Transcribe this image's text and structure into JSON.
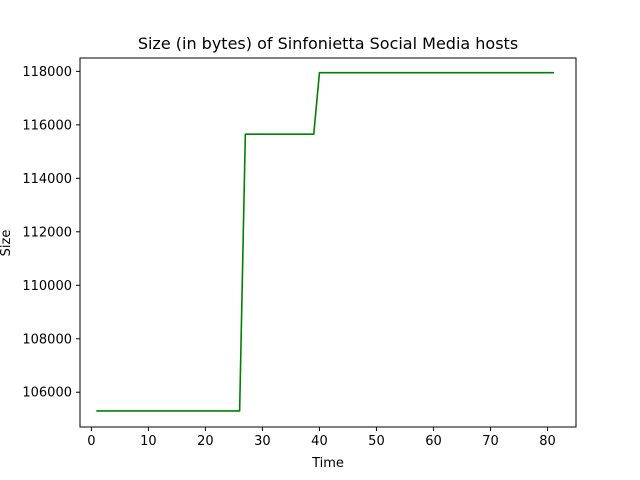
{
  "chart_data": {
    "type": "line",
    "title": "Size (in bytes) of Sinfonietta Social Media hosts",
    "xlabel": "Time",
    "ylabel": "Size",
    "xlim": [
      -2,
      85
    ],
    "ylim": [
      104700,
      118500
    ],
    "xticks": [
      0,
      10,
      20,
      30,
      40,
      50,
      60,
      70,
      80
    ],
    "yticks": [
      106000,
      108000,
      110000,
      112000,
      114000,
      116000,
      118000
    ],
    "grid": false,
    "series": [
      {
        "color": "#008000",
        "x": [
          1,
          26,
          27,
          39,
          40,
          81
        ],
        "y": [
          105300,
          105300,
          115650,
          115650,
          117950,
          117950
        ]
      }
    ]
  }
}
